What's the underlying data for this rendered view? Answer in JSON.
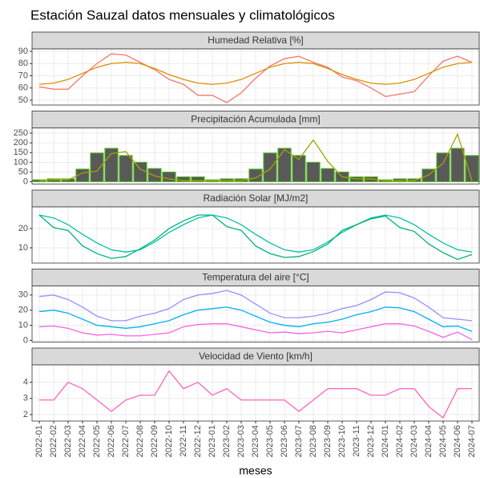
{
  "title": "Estación Sauzal datos mensuales y climatológicos",
  "x_axis": {
    "label": "meses",
    "categories": [
      "2022-01",
      "2022-02",
      "2022-03",
      "2022-04",
      "2022-05",
      "2022-06",
      "2022-07",
      "2022-08",
      "2022-09",
      "2022-10",
      "2022-11",
      "2022-12",
      "2023-01",
      "2023-02",
      "2023-03",
      "2023-04",
      "2023-05",
      "2023-06",
      "2023-07",
      "2023-08",
      "2023-09",
      "2023-10",
      "2023-11",
      "2023-12",
      "2024-01",
      "2024-02",
      "2024-03",
      "2024-04",
      "2024-05",
      "2024-06",
      "2024-07"
    ]
  },
  "chart_data": [
    {
      "type": "line",
      "title": "Humedad Relativa [%]",
      "ylim": [
        46,
        92
      ],
      "yticks": [
        50,
        60,
        70,
        80,
        90
      ],
      "grid": true,
      "series": [
        {
          "color": "#F8766D",
          "values": [
            61,
            59,
            59,
            70,
            80,
            88,
            87,
            81,
            75,
            67,
            63,
            54,
            54,
            48,
            56,
            68,
            78,
            84,
            86,
            81,
            77,
            69,
            66,
            60,
            53,
            55,
            57,
            70,
            82,
            86,
            81
          ]
        },
        {
          "color": "#D89000",
          "values": [
            63,
            64,
            67,
            72,
            77,
            80,
            81,
            80,
            76,
            71,
            67,
            64,
            63,
            64,
            67,
            72,
            77,
            80,
            81,
            80,
            76,
            71,
            67,
            64,
            63,
            64,
            67,
            72,
            77,
            80,
            81
          ]
        }
      ]
    },
    {
      "type": "combo",
      "title": "Precipitación Acumulada [mm]",
      "ylim": [
        -12,
        277
      ],
      "yticks": [
        0,
        50,
        100,
        150,
        200,
        250
      ],
      "grid": true,
      "series": [
        {
          "type": "bar",
          "color": "#595959",
          "edgecolor": "#4CBF1A",
          "values": [
            10,
            15,
            15,
            65,
            148,
            172,
            135,
            100,
            68,
            50,
            25,
            25,
            10,
            15,
            15,
            65,
            148,
            172,
            135,
            100,
            68,
            50,
            25,
            25,
            10,
            15,
            15,
            65,
            148,
            172,
            135
          ]
        },
        {
          "type": "line",
          "color": "#A3A500",
          "values": [
            5,
            10,
            10,
            45,
            55,
            145,
            155,
            65,
            30,
            15,
            5,
            5,
            5,
            5,
            5,
            20,
            65,
            165,
            115,
            215,
            105,
            25,
            15,
            15,
            5,
            5,
            5,
            35,
            95,
            245,
            5
          ]
        }
      ]
    },
    {
      "type": "line",
      "title": "Radiación Solar [MJ/m2]",
      "ylim": [
        2.1,
        31.2
      ],
      "yticks": [
        10,
        20
      ],
      "grid": true,
      "series": [
        {
          "color": "#00C1A7",
          "values": [
            27,
            25.5,
            22,
            17,
            12.5,
            9,
            7.8,
            9,
            13,
            18,
            22,
            25.5,
            27,
            25.5,
            22,
            17,
            12.5,
            9,
            7.8,
            9,
            13,
            18,
            22,
            25.5,
            27,
            25.5,
            22,
            17,
            12.5,
            9,
            7.8
          ]
        },
        {
          "color": "#00B37A",
          "values": [
            27,
            20.5,
            19,
            11,
            7,
            4.5,
            5.5,
            9.5,
            14,
            20,
            24,
            27,
            27,
            21,
            19,
            11,
            7,
            5,
            5.5,
            8,
            12,
            19,
            22,
            25,
            26.5,
            20.5,
            18.5,
            12,
            7.5,
            4,
            6.5
          ]
        }
      ]
    },
    {
      "type": "line",
      "title": "Temperatura del aire [°C]",
      "ylim": [
        -1.1,
        36
      ],
      "yticks": [
        0,
        10,
        20,
        30
      ],
      "grid": true,
      "series": [
        {
          "color": "#9590FF",
          "values": [
            29,
            30,
            27,
            22,
            16,
            13,
            13,
            16,
            18,
            21,
            27,
            30,
            31,
            33,
            30,
            24,
            18,
            15,
            15,
            16,
            18,
            21,
            23,
            27,
            32,
            31.5,
            28,
            22,
            15,
            14,
            13
          ]
        },
        {
          "color": "#00B0F6",
          "values": [
            19,
            20,
            18,
            14,
            10,
            9,
            8,
            9,
            11,
            13,
            17,
            20,
            21,
            22,
            20,
            16,
            12,
            10,
            9,
            11,
            12,
            14,
            17,
            19,
            22,
            21.5,
            19,
            14,
            9,
            9.5,
            6
          ]
        },
        {
          "color": "#F564E3",
          "values": [
            9,
            9.5,
            8,
            5,
            3.5,
            4,
            3,
            3,
            4,
            5,
            9,
            10.5,
            11,
            11,
            9,
            7,
            5,
            5.5,
            4.5,
            5,
            6,
            5,
            7,
            9,
            11,
            11,
            9.5,
            6,
            2,
            5.5,
            0.5
          ]
        }
      ]
    },
    {
      "type": "line",
      "title": "Velocidad de Viento [km/h]",
      "ylim": [
        1.6,
        5.07
      ],
      "yticks": [
        2,
        3,
        4
      ],
      "grid": true,
      "series": [
        {
          "color": "#FF62BC",
          "values": [
            2.9,
            2.9,
            4.0,
            3.6,
            2.9,
            2.2,
            2.9,
            3.2,
            3.2,
            4.7,
            3.6,
            4.0,
            3.2,
            3.6,
            2.9,
            2.9,
            2.9,
            2.9,
            2.2,
            2.9,
            3.6,
            3.6,
            3.6,
            3.2,
            3.2,
            3.6,
            3.6,
            2.5,
            1.8,
            3.6,
            3.6
          ]
        }
      ]
    }
  ]
}
